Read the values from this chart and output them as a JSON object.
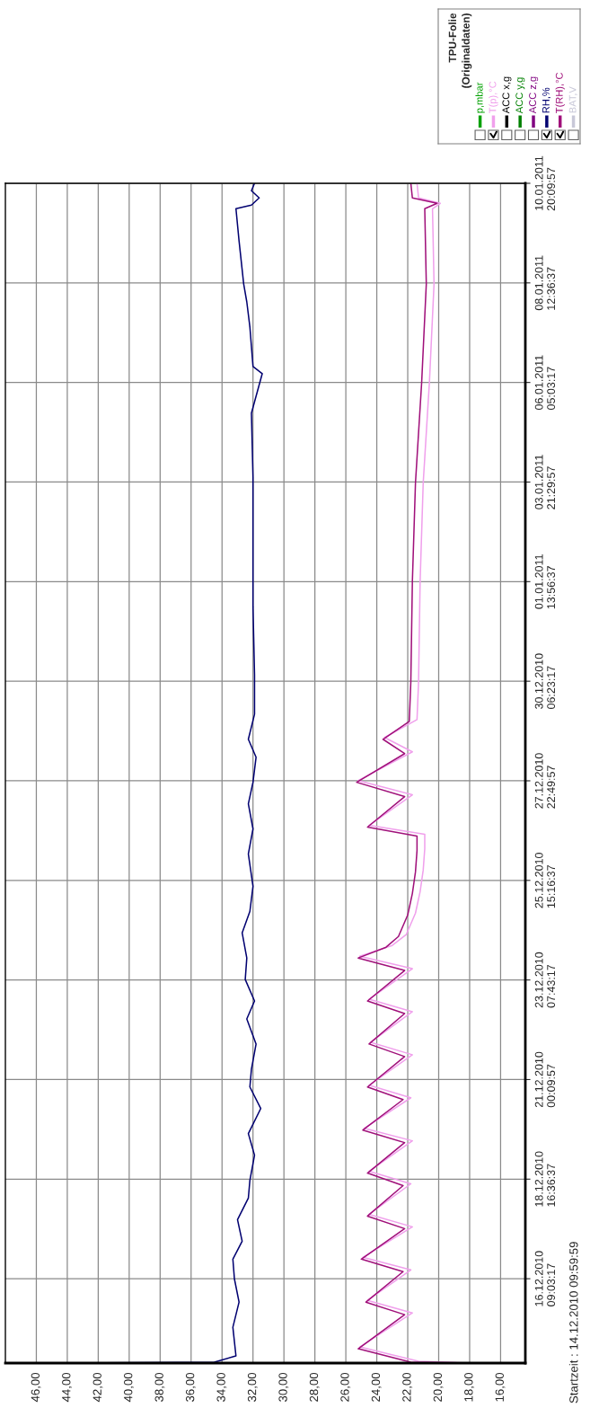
{
  "chart_data": {
    "type": "line",
    "orientation": "horizontal",
    "legend_title": "TPU-Folie\n(Originaldaten)",
    "annotations": [
      "Startzeit : 14.12.2010 09:59:59"
    ],
    "xlim": [
      48,
      14.4
    ],
    "xticks": [
      {
        "value": 46,
        "label": "46,00"
      },
      {
        "value": 44,
        "label": "44,00"
      },
      {
        "value": 42,
        "label": "42,00"
      },
      {
        "value": 40,
        "label": "40,00"
      },
      {
        "value": 38,
        "label": "38,00"
      },
      {
        "value": 36,
        "label": "36,00"
      },
      {
        "value": 34,
        "label": "34,00"
      },
      {
        "value": 32,
        "label": "32,00"
      },
      {
        "value": 30,
        "label": "30,00"
      },
      {
        "value": 28,
        "label": "28,00"
      },
      {
        "value": 26,
        "label": "26,00"
      },
      {
        "value": 24,
        "label": "24,00"
      },
      {
        "value": 22,
        "label": "22,00"
      },
      {
        "value": 20,
        "label": "20,00"
      },
      {
        "value": 18,
        "label": "18,00"
      },
      {
        "value": 16,
        "label": "16,00"
      }
    ],
    "ylim": [
      "2010-12-14T09:59:59",
      "2011-01-10T20:09:57"
    ],
    "yticks": [
      {
        "value": "2010-12-16T09:03:17",
        "label": "16.12.2010\n09:03:17"
      },
      {
        "value": "2010-12-18T16:36:37",
        "label": "18.12.2010\n16:36:37"
      },
      {
        "value": "2010-12-21T00:09:57",
        "label": "21.12.2010\n00:09:57"
      },
      {
        "value": "2010-12-23T07:43:17",
        "label": "23.12.2010\n07:43:17"
      },
      {
        "value": "2010-12-25T15:16:37",
        "label": "25.12.2010\n15:16:37"
      },
      {
        "value": "2010-12-27T22:49:57",
        "label": "27.12.2010\n22:49:57"
      },
      {
        "value": "2010-12-30T06:23:17",
        "label": "30.12.2010\n06:23:17"
      },
      {
        "value": "2011-01-01T13:56:37",
        "label": "01.01.2011\n13:56:37"
      },
      {
        "value": "2011-01-03T21:29:57",
        "label": "03.01.2011\n21:29:57"
      },
      {
        "value": "2011-01-06T05:03:17",
        "label": "06.01.2011\n05:03:17"
      },
      {
        "value": "2011-01-08T12:36:37",
        "label": "08.01.2011\n12:36:37"
      },
      {
        "value": "2011-01-10T20:09:57",
        "label": "10.01.2011\n20:09:57"
      }
    ],
    "grid": true,
    "legend": "top right",
    "marker": "none",
    "line_style": "solid",
    "series": [
      {
        "name": "p,mbar",
        "color": "#00a000"
      },
      {
        "name": "T(p),°C",
        "color": "#f0a0ec",
        "x": [
          "2010-12-14T09:59:59",
          "2010-12-14T11:00",
          "2010-12-14T19:00",
          "2010-12-15T14:00",
          "2010-12-15T21:00",
          "2010-12-16T14:00",
          "2010-12-16T21:00",
          "2010-12-17T14:00",
          "2010-12-17T21:00",
          "2010-12-18T14:00",
          "2010-12-18T21:00",
          "2010-12-19T14:00",
          "2010-12-19T21:00",
          "2010-12-20T14:00",
          "2010-12-20T21:00",
          "2010-12-21T14:00",
          "2010-12-21T21:00",
          "2010-12-22T14:00",
          "2010-12-22T21:00",
          "2010-12-23T14:00",
          "2010-12-23T21:00",
          "2010-12-24T03:00",
          "2010-12-24T09:00",
          "2010-12-24T21:00",
          "2010-12-25T09:00",
          "2010-12-25T21:00",
          "2010-12-26T09:00",
          "2010-12-26T17:00",
          "2010-12-26T22:00",
          "2010-12-27T15:00",
          "2010-12-27T23:00",
          "2010-12-28T15:00",
          "2010-12-28T23:00",
          "2010-12-29T09:00",
          "2010-12-30T06:00",
          "2011-01-01T14:00",
          "2011-01-03T21:00",
          "2011-01-06T05:00",
          "2011-01-08T12:00",
          "2011-01-10T06:00",
          "2011-01-10T09:00",
          "2011-01-10T12:00",
          "2011-01-10T20:09:57"
        ],
        "values": [
          18.0,
          21.3,
          25.1,
          21.7,
          24.6,
          21.8,
          24.9,
          21.7,
          24.5,
          21.8,
          24.5,
          21.7,
          24.8,
          21.8,
          24.5,
          21.7,
          24.4,
          21.7,
          24.5,
          21.7,
          25.1,
          23.0,
          22.1,
          21.5,
          21.2,
          21.0,
          20.9,
          20.9,
          24.5,
          21.7,
          25.2,
          21.7,
          23.5,
          21.4,
          21.3,
          21.2,
          21.0,
          20.6,
          20.3,
          20.4,
          19.9,
          21.3,
          21.4
        ]
      },
      {
        "name": "ACC x,g",
        "color": "#000000"
      },
      {
        "name": "ACC y,g",
        "color": "#008000"
      },
      {
        "name": "ACC z,g",
        "color": "#800080"
      },
      {
        "name": "RH,%",
        "color": "#000070",
        "x": [
          "2010-12-14T09:59:59",
          "2010-12-14T10:30",
          "2010-12-14T14:00",
          "2010-12-15T06:00",
          "2010-12-15T20:00",
          "2010-12-16T09:00",
          "2010-12-16T20:00",
          "2010-12-17T06:00",
          "2010-12-17T18:00",
          "2010-12-18T06:00",
          "2010-12-18T16:00",
          "2010-12-19T06:00",
          "2010-12-19T18:00",
          "2010-12-20T08:00",
          "2010-12-20T20:00",
          "2010-12-21T06:00",
          "2010-12-21T20:00",
          "2010-12-22T10:00",
          "2010-12-22T20:00",
          "2010-12-23T08:00",
          "2010-12-23T20:00",
          "2010-12-24T10:00",
          "2010-12-24T22:00",
          "2010-12-25T12:00",
          "2010-12-26T06:00",
          "2010-12-26T20:00",
          "2010-12-27T10:00",
          "2010-12-27T22:00",
          "2010-12-28T12:00",
          "2010-12-28T22:00",
          "2010-12-29T12:00",
          "2010-12-30T10:00",
          "2011-01-01T00:00",
          "2011-01-02T12:00",
          "2011-01-04T00:00",
          "2011-01-05T12:00",
          "2011-01-06T10:00",
          "2011-01-06T14:00",
          "2011-01-07T12:00",
          "2011-01-08T02:00",
          "2011-01-08T12:00",
          "2011-01-09T12:00",
          "2011-01-10T06:00",
          "2011-01-10T08:00",
          "2011-01-10T12:00",
          "2011-01-10T16:00",
          "2011-01-10T20:09:57"
        ],
        "values": [
          44.0,
          34.5,
          33.1,
          33.3,
          32.9,
          33.2,
          33.3,
          32.7,
          33.0,
          32.3,
          32.2,
          31.9,
          32.3,
          31.5,
          32.2,
          32.1,
          31.8,
          32.4,
          31.9,
          32.5,
          32.4,
          32.7,
          32.2,
          32.0,
          32.3,
          32.0,
          32.3,
          32.0,
          31.8,
          32.3,
          31.9,
          31.9,
          32.0,
          32.0,
          32.0,
          32.1,
          31.4,
          32.0,
          32.2,
          32.4,
          32.6,
          32.9,
          33.1,
          32.1,
          31.6,
          32.1,
          31.9
        ]
      },
      {
        "name": "T(RH),°C",
        "color": "#a0107a",
        "x": [
          "2010-12-14T09:59:59",
          "2010-12-14T10:30",
          "2010-12-14T18:00",
          "2010-12-15T13:00",
          "2010-12-15T20:00",
          "2010-12-16T13:00",
          "2010-12-16T20:00",
          "2010-12-17T13:00",
          "2010-12-17T20:00",
          "2010-12-18T13:00",
          "2010-12-18T20:00",
          "2010-12-19T13:00",
          "2010-12-19T20:00",
          "2010-12-20T13:00",
          "2010-12-20T20:00",
          "2010-12-21T13:00",
          "2010-12-21T20:00",
          "2010-12-22T13:00",
          "2010-12-22T20:00",
          "2010-12-23T13:00",
          "2010-12-23T20:00",
          "2010-12-24T02:00",
          "2010-12-24T08:00",
          "2010-12-24T20:00",
          "2010-12-25T08:00",
          "2010-12-25T20:00",
          "2010-12-26T08:00",
          "2010-12-26T16:00",
          "2010-12-26T21:00",
          "2010-12-27T14:00",
          "2010-12-27T22:00",
          "2010-12-28T14:00",
          "2010-12-28T22:00",
          "2010-12-29T08:00",
          "2010-12-30T06:00",
          "2011-01-01T14:00",
          "2011-01-03T21:00",
          "2011-01-06T05:00",
          "2011-01-08T12:00",
          "2011-01-10T06:00",
          "2011-01-10T09:00",
          "2011-01-10T12:00",
          "2011-01-10T20:09:57"
        ],
        "values": [
          18.0,
          21.8,
          25.2,
          22.2,
          24.7,
          22.3,
          25.0,
          22.2,
          24.6,
          22.3,
          24.6,
          22.2,
          24.9,
          22.3,
          24.6,
          22.2,
          24.5,
          22.2,
          24.6,
          22.2,
          25.2,
          23.4,
          22.6,
          22.0,
          21.7,
          21.5,
          21.4,
          21.4,
          24.6,
          22.2,
          25.3,
          22.2,
          23.6,
          21.9,
          21.8,
          21.7,
          21.5,
          21.1,
          20.8,
          20.9,
          20.1,
          21.7,
          21.8
        ]
      },
      {
        "name": "BAT,V",
        "color": "#c8c8d8"
      }
    ]
  }
}
